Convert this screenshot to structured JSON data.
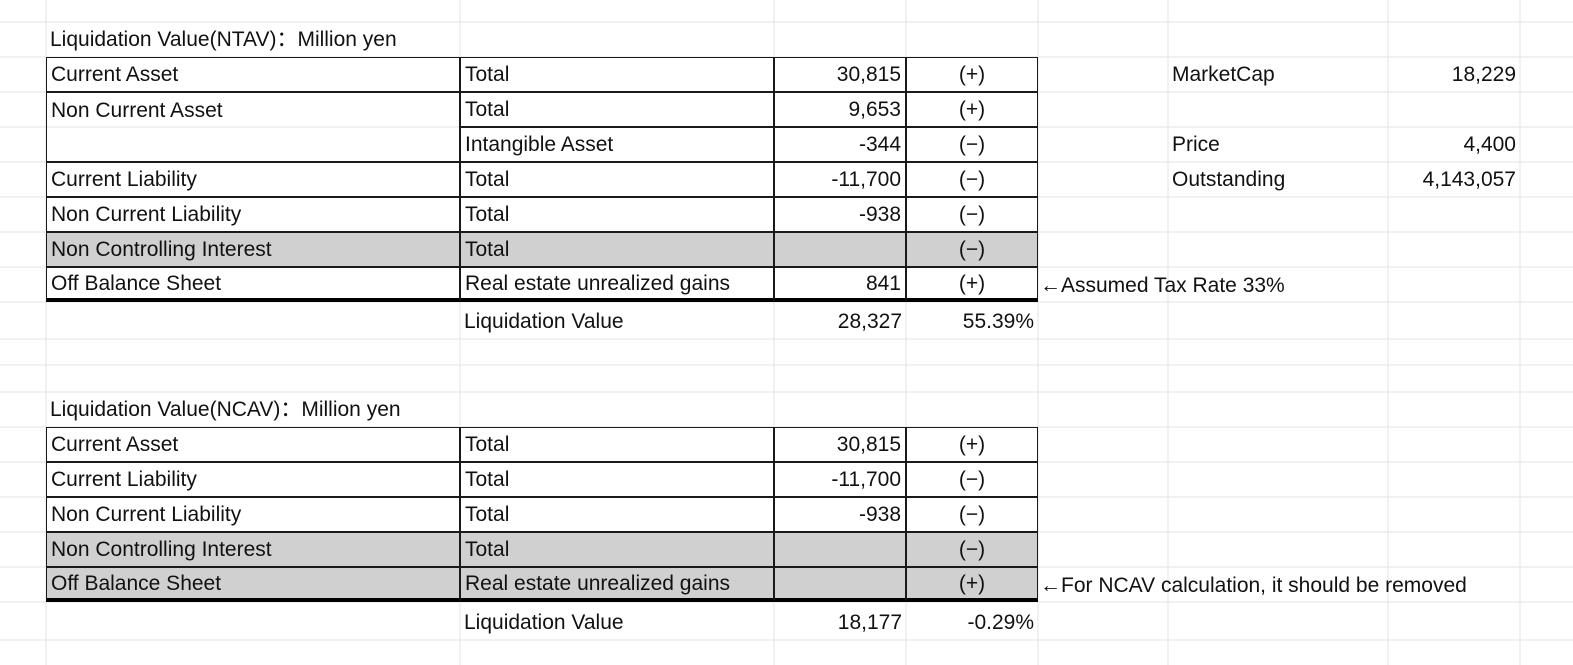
{
  "ntav": {
    "title": "Liquidation Value(NTAV)：Million yen",
    "rows": [
      {
        "item": "Current Asset",
        "detail": "Total",
        "value": "30,815",
        "sign": "(+)"
      },
      {
        "item": "Non Current Asset",
        "detail": "Total",
        "value": "9,653",
        "sign": "(+)"
      },
      {
        "item": "",
        "detail": "Intangible Asset",
        "value": "-344",
        "sign": "(−)"
      },
      {
        "item": "Current Liability",
        "detail": "Total",
        "value": "-11,700",
        "sign": "(−)"
      },
      {
        "item": "Non Current Liability",
        "detail": "Total",
        "value": "-938",
        "sign": "(−)"
      },
      {
        "item": "Non Controlling Interest",
        "detail": "Total",
        "value": "",
        "sign": "(−)"
      },
      {
        "item": "Off Balance Sheet",
        "detail": "Real estate unrealized gains",
        "value": "841",
        "sign": "(+)"
      }
    ],
    "total_label": "Liquidation Value",
    "total_value": "28,327",
    "total_pct": "55.39%",
    "note": "←Assumed Tax Rate 33%"
  },
  "market": {
    "marketcap_label": "MarketCap",
    "marketcap_value": "18,229",
    "price_label": "Price",
    "price_value": "4,400",
    "outstanding_label": "Outstanding",
    "outstanding_value": "4,143,057"
  },
  "ncav": {
    "title": "Liquidation Value(NCAV)：Million yen",
    "rows": [
      {
        "item": "Current Asset",
        "detail": "Total",
        "value": "30,815",
        "sign": "(+)"
      },
      {
        "item": "Current Liability",
        "detail": "Total",
        "value": "-11,700",
        "sign": "(−)"
      },
      {
        "item": "Non Current Liability",
        "detail": "Total",
        "value": "-938",
        "sign": "(−)"
      },
      {
        "item": "Non Controlling Interest",
        "detail": "Total",
        "value": "",
        "sign": "(−)"
      },
      {
        "item": "Off Balance Sheet",
        "detail": "Real estate unrealized gains",
        "value": "",
        "sign": "(+)"
      }
    ],
    "total_label": "Liquidation Value",
    "total_value": "18,177",
    "total_pct": "-0.29%",
    "note": "←For NCAV calculation, it should be removed"
  },
  "colors": {
    "gridline": "#e3e3e3",
    "border": "#1a1a1a",
    "shaded": "#d0d0d0"
  }
}
